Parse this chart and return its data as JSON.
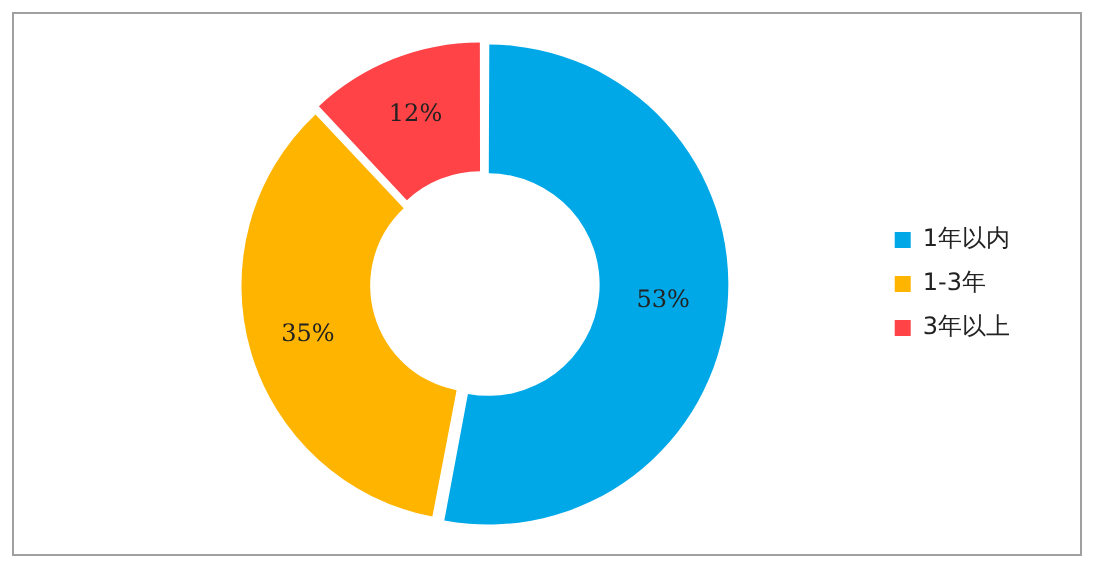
{
  "chart_data": {
    "type": "donut",
    "categories": [
      "1年以内",
      "1-3年",
      "3年以上"
    ],
    "values": [
      53,
      35,
      12
    ],
    "colors": [
      "#00a8e8",
      "#ffb400",
      "#ff4347"
    ],
    "value_labels": [
      "53%",
      "35%",
      "12%"
    ],
    "legend": "right"
  }
}
